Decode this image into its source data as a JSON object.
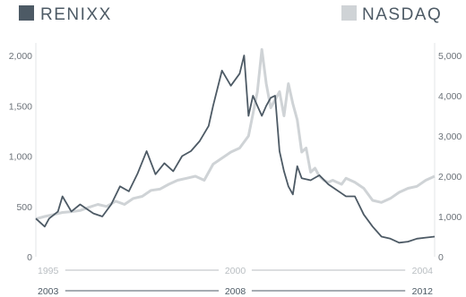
{
  "chart_data": {
    "type": "line",
    "legend": {
      "left": {
        "label": "RENIXX",
        "color": "#4d5a65"
      },
      "right": {
        "label": "NASDAQ",
        "color": "#cfd3d6"
      }
    },
    "left_axis": {
      "ticks": [
        "0",
        "500",
        "1,000",
        "1,500",
        "2,000"
      ],
      "ylim": [
        0,
        2000
      ]
    },
    "right_axis": {
      "ticks": [
        "0",
        "1,000",
        "2,000",
        "3,000",
        "4,000",
        "5,000"
      ],
      "ylim": [
        0,
        5000
      ]
    },
    "x_axis_nasdaq": {
      "labels": [
        "1995",
        "2000",
        "2004"
      ],
      "range": [
        "1995",
        "2004"
      ],
      "color": "#b9bec2"
    },
    "x_axis_renixx": {
      "labels": [
        "2003",
        "2008",
        "2012"
      ],
      "range": [
        "2003",
        "2012"
      ],
      "color": "#4d5a65"
    },
    "series": [
      {
        "name": "NASDAQ",
        "axis": "right",
        "color": "#cfd3d6",
        "x": [
          1995.0,
          1995.2,
          1995.4,
          1995.6,
          1995.8,
          1996.0,
          1996.2,
          1996.4,
          1996.6,
          1996.8,
          1997.0,
          1997.2,
          1997.4,
          1997.6,
          1997.8,
          1998.0,
          1998.2,
          1998.4,
          1998.6,
          1998.8,
          1999.0,
          1999.2,
          1999.4,
          1999.6,
          1999.8,
          2000.0,
          2000.1,
          2000.2,
          2000.3,
          2000.4,
          2000.5,
          2000.6,
          2000.7,
          2000.8,
          2000.9,
          2001.0,
          2001.1,
          2001.2,
          2001.3,
          2001.4,
          2001.5,
          2001.6,
          2001.7,
          2001.8,
          2001.9,
          2002.0,
          2002.2,
          2002.4,
          2002.6,
          2002.8,
          2003.0,
          2003.2,
          2003.4,
          2003.6,
          2003.8,
          2004.0
        ],
        "y": [
          940,
          1000,
          1050,
          1100,
          1120,
          1150,
          1230,
          1300,
          1250,
          1380,
          1300,
          1450,
          1500,
          1650,
          1680,
          1800,
          1900,
          1950,
          2000,
          1900,
          2300,
          2450,
          2600,
          2700,
          3000,
          4100,
          5150,
          4300,
          3700,
          3900,
          4100,
          3500,
          4300,
          3800,
          3400,
          2600,
          2700,
          2100,
          2200,
          2000,
          1900,
          1850,
          1900,
          1850,
          1800,
          1950,
          1850,
          1700,
          1400,
          1350,
          1450,
          1600,
          1700,
          1750,
          1900,
          2000
        ]
      },
      {
        "name": "RENIXX",
        "axis": "left",
        "color": "#4d5a65",
        "x": [
          2003.0,
          2003.2,
          2003.3,
          2003.5,
          2003.6,
          2003.8,
          2004.0,
          2004.2,
          2004.3,
          2004.5,
          2004.7,
          2004.9,
          2005.1,
          2005.3,
          2005.5,
          2005.7,
          2005.9,
          2006.1,
          2006.3,
          2006.5,
          2006.7,
          2006.9,
          2007.0,
          2007.2,
          2007.4,
          2007.6,
          2007.7,
          2007.8,
          2007.9,
          2008.0,
          2008.1,
          2008.2,
          2008.3,
          2008.4,
          2008.5,
          2008.6,
          2008.7,
          2008.8,
          2008.9,
          2009.0,
          2009.2,
          2009.4,
          2009.6,
          2009.8,
          2010.0,
          2010.2,
          2010.4,
          2010.6,
          2010.8,
          2011.0,
          2011.2,
          2011.4,
          2011.6,
          2011.8,
          2012.0
        ],
        "y": [
          380,
          300,
          380,
          450,
          600,
          450,
          520,
          460,
          430,
          400,
          520,
          700,
          650,
          830,
          1050,
          820,
          930,
          850,
          1000,
          1050,
          1150,
          1300,
          1500,
          1850,
          1700,
          1820,
          2000,
          1400,
          1600,
          1500,
          1400,
          1500,
          1580,
          1600,
          1050,
          850,
          700,
          620,
          900,
          780,
          760,
          810,
          720,
          660,
          600,
          600,
          420,
          300,
          200,
          180,
          140,
          150,
          180,
          190,
          200
        ]
      }
    ]
  }
}
